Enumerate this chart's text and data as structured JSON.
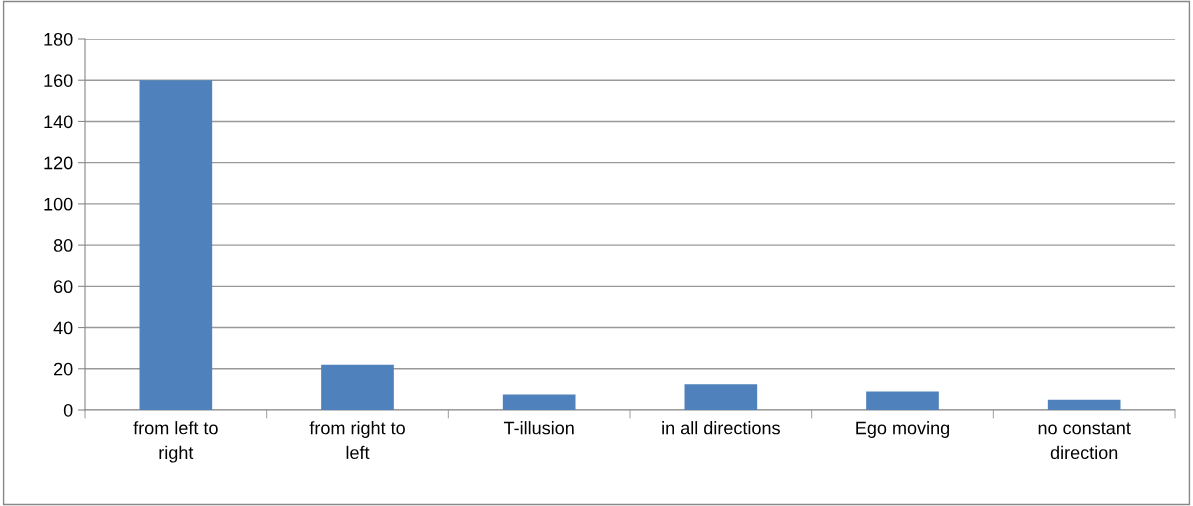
{
  "chart_data": {
    "type": "bar",
    "categories": [
      "from left to right",
      "from right to left",
      "T-illusion",
      "in all directions",
      "Ego moving",
      "no constant direction"
    ],
    "values": [
      160,
      22,
      7.5,
      12.5,
      9,
      5
    ],
    "color": "#4f81bd",
    "ylim": [
      0,
      180
    ],
    "yticks": [
      0,
      20,
      40,
      60,
      80,
      100,
      120,
      140,
      160,
      180
    ],
    "grid": "y",
    "legend": false
  }
}
